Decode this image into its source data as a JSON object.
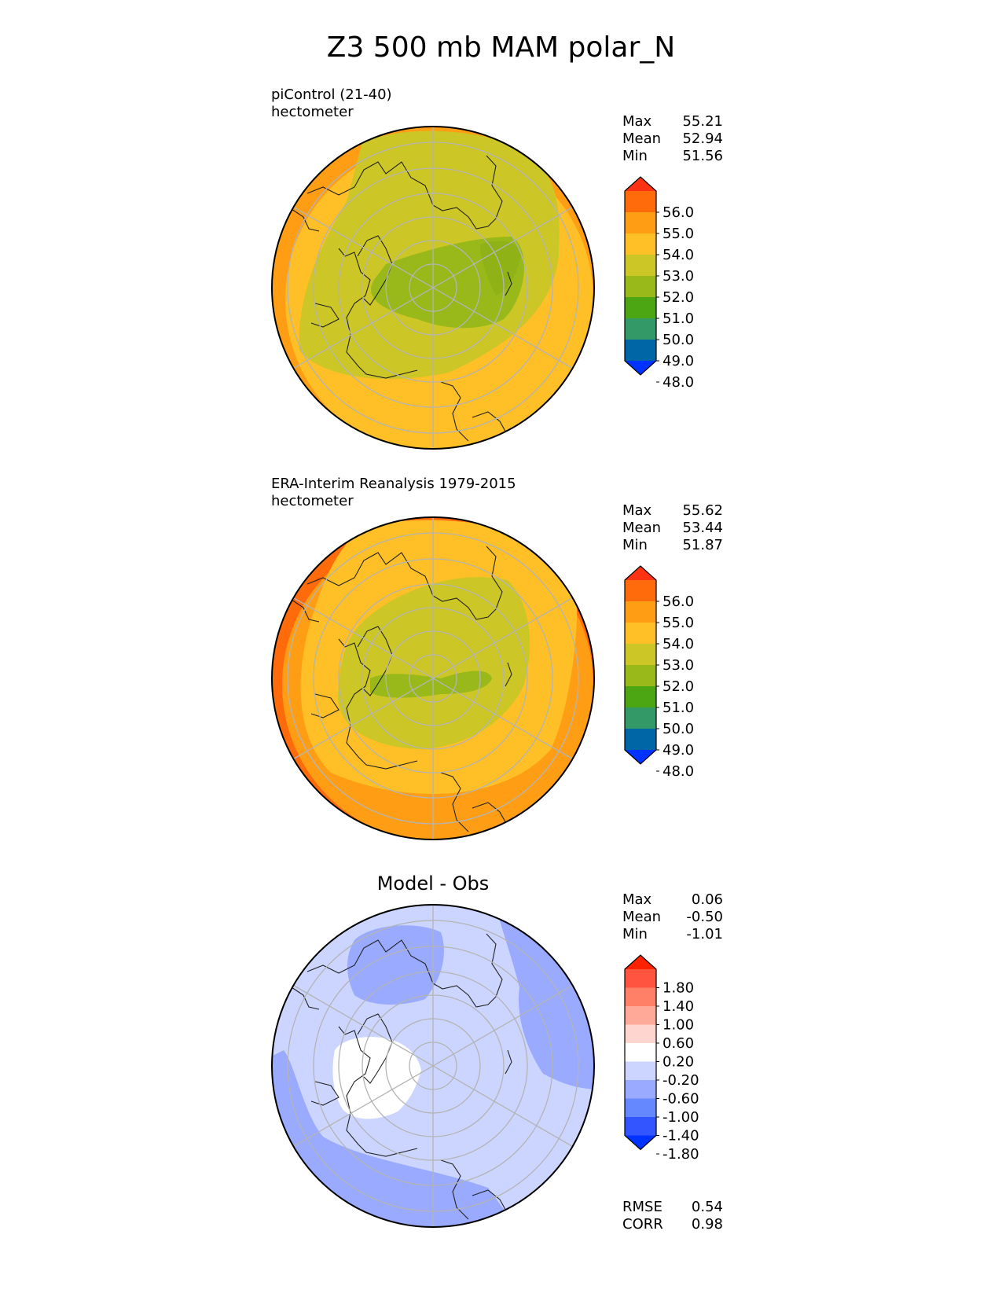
{
  "figure_title": "Z3 500 mb MAM polar_N",
  "colors": {
    "z_levels": [
      "#0033ff",
      "#0066a6",
      "#339966",
      "#4ca614",
      "#99b819",
      "#ccc726",
      "#ffbf26",
      "#ff9e14",
      "#ff6b0a",
      "#ff3311"
    ],
    "diff_levels": [
      "#0033ff",
      "#3355ff",
      "#6688ff",
      "#99aaff",
      "#ccd5ff",
      "#ffffff",
      "#ffd5d0",
      "#ffaa99",
      "#ff8066",
      "#ff5540",
      "#ff2200"
    ],
    "graticule": "#b4b4b4",
    "coast": "#222222"
  },
  "panels": [
    {
      "id": "model",
      "label_line1": "piControl (21-40)",
      "label_line2": "hectometer",
      "stats": [
        {
          "name": "Max",
          "value": "55.21"
        },
        {
          "name": "Mean",
          "value": "52.94"
        },
        {
          "name": "Min",
          "value": "51.56"
        }
      ],
      "colorbar_ticks": [
        "56.0",
        "55.0",
        "54.0",
        "53.0",
        "52.0",
        "51.0",
        "50.0",
        "49.0",
        "48.0"
      ]
    },
    {
      "id": "obs",
      "label_line1": "ERA-Interim Reanalysis 1979-2015",
      "label_line2": "hectometer",
      "stats": [
        {
          "name": "Max",
          "value": "55.62"
        },
        {
          "name": "Mean",
          "value": "53.44"
        },
        {
          "name": "Min",
          "value": "51.87"
        }
      ],
      "colorbar_ticks": [
        "56.0",
        "55.0",
        "54.0",
        "53.0",
        "52.0",
        "51.0",
        "50.0",
        "49.0",
        "48.0"
      ]
    },
    {
      "id": "diff",
      "title": "Model - Obs",
      "stats": [
        {
          "name": "Max",
          "value": "0.06"
        },
        {
          "name": "Mean",
          "value": "-0.50"
        },
        {
          "name": "Min",
          "value": "-1.01"
        }
      ],
      "colorbar_ticks": [
        "1.80",
        "1.40",
        "1.00",
        "0.60",
        "0.20",
        "-0.20",
        "-0.60",
        "-1.00",
        "-1.40",
        "-1.80"
      ],
      "metrics": [
        {
          "name": "RMSE",
          "value": "0.54"
        },
        {
          "name": "CORR",
          "value": "0.98"
        }
      ]
    }
  ]
}
